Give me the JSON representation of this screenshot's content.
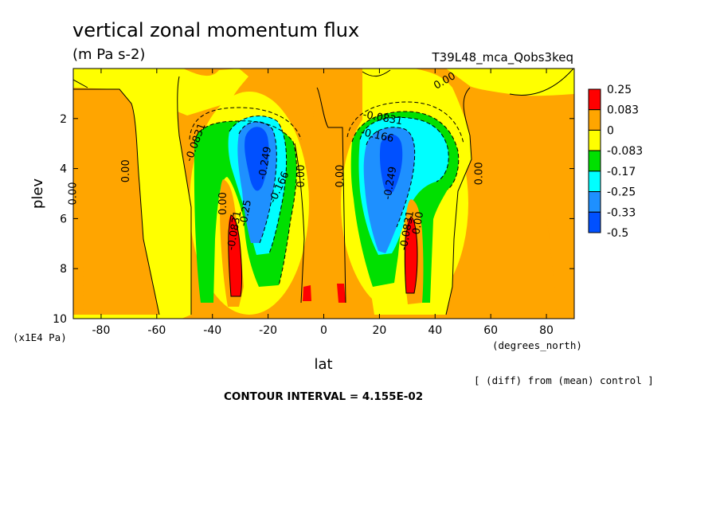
{
  "chart_data": {
    "type": "heatmap",
    "title": "vertical zonal momentum flux",
    "subtitle": "(m Pa s-2)",
    "run_label": "T39L48_mca_Qobs3keq",
    "xlabel": "lat",
    "x_units": "(degrees_north)",
    "ylabel": "plev",
    "y_units": "(x1E4 Pa)",
    "xlim": [
      -90,
      90
    ],
    "ylim": [
      0,
      10
    ],
    "y_inverted": true,
    "x_ticks": [
      "-80",
      "-60",
      "-40",
      "-20",
      "0",
      "20",
      "40",
      "60",
      "80"
    ],
    "x_tick_values": [
      -80,
      -60,
      -40,
      -20,
      0,
      20,
      40,
      60,
      80
    ],
    "y_ticks": [
      "2",
      "4",
      "6",
      "8",
      "10"
    ],
    "y_tick_values": [
      2,
      4,
      6,
      8,
      10
    ],
    "colorbar": {
      "labels": [
        "0.25",
        "0.083",
        "0",
        "-0.083",
        "-0.17",
        "-0.25",
        "-0.33",
        "-0.5"
      ],
      "colors": [
        "#ff0000",
        "#ffa500",
        "#ffff00",
        "#00e000",
        "#00ffff",
        "#1e90ff",
        "#0050ff"
      ]
    },
    "contour_labels": [
      {
        "text": "0.00",
        "lat": 44,
        "plev": 0.6,
        "angle": -30
      },
      {
        "text": "-0.0831",
        "lat": 21,
        "plev": 2.1,
        "angle": 10
      },
      {
        "text": "-0.166",
        "lat": 19,
        "plev": 2.8,
        "angle": 12
      },
      {
        "text": "-0.249",
        "lat": 25,
        "plev": 4.6,
        "angle": -80
      },
      {
        "text": "-0.0831",
        "lat": 31,
        "plev": 6.5,
        "angle": -80
      },
      {
        "text": "0.00",
        "lat": 35,
        "plev": 6.2,
        "angle": -80
      },
      {
        "text": "0.00",
        "lat": 7,
        "plev": 4.3,
        "angle": -90
      },
      {
        "text": "0.00",
        "lat": 57,
        "plev": 4.2,
        "angle": -90
      },
      {
        "text": "0.00",
        "lat": -7,
        "plev": 4.3,
        "angle": -90
      },
      {
        "text": "-0.166",
        "lat": -15,
        "plev": 4.8,
        "angle": -65
      },
      {
        "text": "-0.249",
        "lat": -20,
        "plev": 3.8,
        "angle": -80
      },
      {
        "text": "-0.0831",
        "lat": -45,
        "plev": 3.0,
        "angle": -70
      },
      {
        "text": "0.00",
        "lat": -70,
        "plev": 4.1,
        "angle": -90
      },
      {
        "text": "0.00",
        "lat": -89,
        "plev": 5.0,
        "angle": -90
      },
      {
        "text": "0.00",
        "lat": -35,
        "plev": 5.4,
        "angle": -90
      },
      {
        "text": "-0.0831",
        "lat": -31,
        "plev": 6.5,
        "angle": -80
      },
      {
        "text": "-0.25",
        "lat": -27,
        "plev": 5.8,
        "angle": -80
      }
    ]
  },
  "footer": {
    "diff_note": "[ (diff) from (mean) control ]",
    "contour_interval": "CONTOUR INTERVAL = 4.155E-02"
  }
}
